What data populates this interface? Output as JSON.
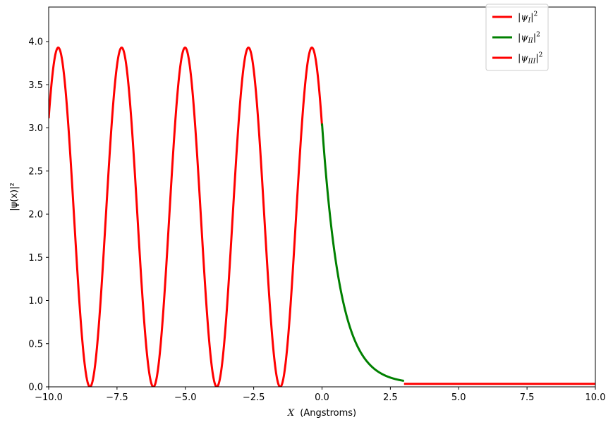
{
  "chart_data": {
    "type": "line",
    "xlabel_var": "X",
    "xlabel_unit": "(Angstroms)",
    "ylabel": "|ψ(x)|²",
    "xlim": [
      -10,
      10
    ],
    "ylim": [
      0,
      4.4
    ],
    "xticks": [
      -10.0,
      -7.5,
      -5.0,
      -2.5,
      0.0,
      2.5,
      5.0,
      7.5,
      10.0
    ],
    "xtick_labels": [
      "−10.0",
      "−7.5",
      "−5.0",
      "−2.5",
      "0.0",
      "2.5",
      "5.0",
      "7.5",
      "10.0"
    ],
    "yticks": [
      0.0,
      0.5,
      1.0,
      1.5,
      2.0,
      2.5,
      3.0,
      3.5,
      4.0
    ],
    "ytick_labels": [
      "0.0",
      "0.5",
      "1.0",
      "1.5",
      "2.0",
      "2.5",
      "3.0",
      "3.5",
      "4.0"
    ],
    "grid": false,
    "legend_position": "upper-right",
    "series": [
      {
        "name": "|ψI|²",
        "name_base": "|ψ",
        "name_sub": "I",
        "name_tail": "|",
        "name_sup": "2",
        "color": "#ff0000",
        "region": [
          -10,
          0
        ],
        "model": {
          "kind": "oscillating",
          "amplitude": 3.93,
          "wavelength": 2.32,
          "peak_at": -0.37
        },
        "key_points": [
          {
            "x": -10.0,
            "y": 3.05
          },
          {
            "x": -9.65,
            "y": 3.93
          },
          {
            "x": -8.5,
            "y": 0.0
          },
          {
            "x": -7.35,
            "y": 3.93
          },
          {
            "x": -6.18,
            "y": 0.0
          },
          {
            "x": -5.01,
            "y": 3.93
          },
          {
            "x": -3.86,
            "y": 0.0
          },
          {
            "x": -2.69,
            "y": 3.93
          },
          {
            "x": -1.54,
            "y": 0.0
          },
          {
            "x": -0.37,
            "y": 3.93
          },
          {
            "x": 0.0,
            "y": 3.05
          }
        ]
      },
      {
        "name": "|ψII|²",
        "name_base": "|ψ",
        "name_sub": "II",
        "name_tail": "|",
        "name_sup": "2",
        "color": "#008000",
        "region": [
          0,
          3
        ],
        "model": {
          "kind": "decaying",
          "start": 3.05,
          "end": 0.035,
          "decay_length": 0.67
        },
        "key_points": [
          {
            "x": 0.0,
            "y": 3.05
          },
          {
            "x": 0.5,
            "y": 1.45
          },
          {
            "x": 1.0,
            "y": 0.7
          },
          {
            "x": 1.5,
            "y": 0.33
          },
          {
            "x": 2.0,
            "y": 0.16
          },
          {
            "x": 2.5,
            "y": 0.07
          },
          {
            "x": 3.0,
            "y": 0.035
          }
        ]
      },
      {
        "name": "|ψIII|²",
        "name_base": "|ψ",
        "name_sub": "III",
        "name_tail": "|",
        "name_sup": "2",
        "color": "#ff0000",
        "region": [
          3,
          10
        ],
        "model": {
          "kind": "constant",
          "value": 0.035
        },
        "key_points": [
          {
            "x": 3.0,
            "y": 0.035
          },
          {
            "x": 10.0,
            "y": 0.035
          }
        ]
      }
    ]
  }
}
